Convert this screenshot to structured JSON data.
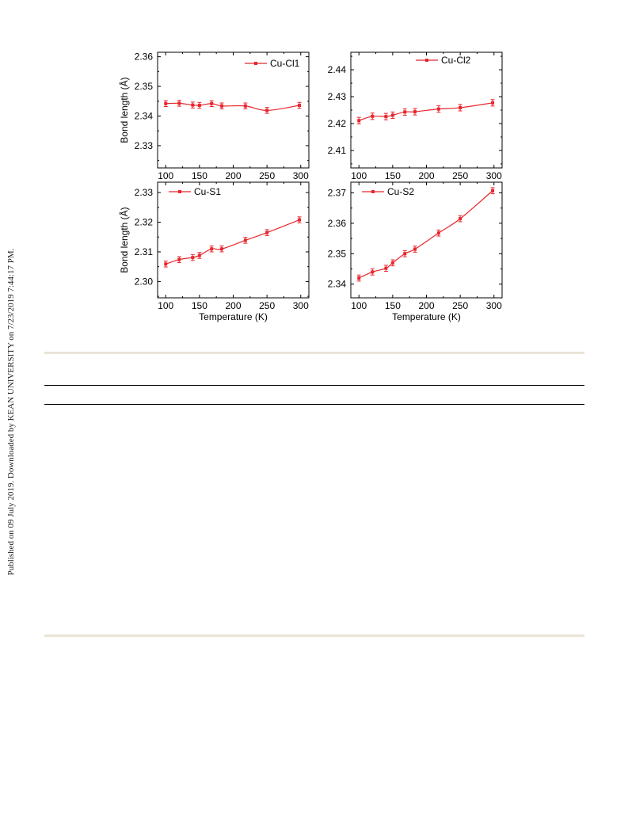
{
  "side_note": "Published on 09 July 2019. Downloaded by KEAN UNIVERSITY on 7/23/2019 7:44:17 PM.",
  "colors": {
    "series": "#e8262d",
    "axis": "#000000",
    "rule_beige": "#e9e4d6"
  },
  "chart_data": [
    {
      "type": "line",
      "title": "",
      "xlabel": "",
      "ylabel": "Bond length (Å)",
      "xlim": [
        88,
        312
      ],
      "ylim": [
        2.3225,
        2.3615
      ],
      "x_ticks": [
        "100",
        "150",
        "200",
        "250",
        "300"
      ],
      "y_ticks": [
        "2.33",
        "2.34",
        "2.35",
        "2.36"
      ],
      "legend_position": "top-right",
      "series": [
        {
          "name": "Cu-Cl1",
          "x": [
            100,
            120,
            140,
            150,
            168,
            183,
            218,
            250,
            298
          ],
          "y": [
            2.3442,
            2.3443,
            2.3437,
            2.3436,
            2.3442,
            2.3434,
            2.3434,
            2.3419,
            2.3436
          ],
          "err": [
            0.001,
            0.001,
            0.001,
            0.001,
            0.001,
            0.001,
            0.001,
            0.001,
            0.001
          ]
        }
      ]
    },
    {
      "type": "line",
      "title": "",
      "xlabel": "",
      "ylabel": "",
      "xlim": [
        88,
        312
      ],
      "ylim": [
        2.4035,
        2.4465
      ],
      "x_ticks": [
        "100",
        "150",
        "200",
        "250",
        "300"
      ],
      "y_ticks": [
        "2.41",
        "2.42",
        "2.43",
        "2.44"
      ],
      "legend_position": "top-center",
      "series": [
        {
          "name": "Cu-Cl2",
          "x": [
            100,
            120,
            140,
            150,
            168,
            183,
            218,
            250,
            298
          ],
          "y": [
            2.4211,
            2.4227,
            2.4226,
            2.4231,
            2.4243,
            2.4244,
            2.4254,
            2.4259,
            2.4277
          ],
          "err": [
            0.0012,
            0.0012,
            0.0012,
            0.0012,
            0.0012,
            0.0012,
            0.0012,
            0.0012,
            0.0012
          ]
        }
      ]
    },
    {
      "type": "line",
      "title": "",
      "xlabel": "Temperature (K)",
      "ylabel": "Bond length (Å)",
      "xlim": [
        88,
        312
      ],
      "ylim": [
        2.2945,
        2.3335
      ],
      "x_ticks": [
        "100",
        "150",
        "200",
        "250",
        "300"
      ],
      "y_ticks": [
        "2.30",
        "2.31",
        "2.32",
        "2.33"
      ],
      "legend_position": "top-left",
      "series": [
        {
          "name": "Cu-S1",
          "x": [
            100,
            120,
            140,
            150,
            168,
            183,
            218,
            250,
            298
          ],
          "y": [
            2.3059,
            2.3074,
            2.3081,
            2.3088,
            2.311,
            2.311,
            2.3139,
            2.3165,
            2.3208
          ],
          "err": [
            0.001,
            0.001,
            0.001,
            0.001,
            0.001,
            0.001,
            0.001,
            0.001,
            0.001
          ]
        }
      ]
    },
    {
      "type": "line",
      "title": "",
      "xlabel": "Temperature (K)",
      "ylabel": "",
      "xlim": [
        88,
        312
      ],
      "ylim": [
        2.3355,
        2.3735
      ],
      "x_ticks": [
        "100",
        "150",
        "200",
        "250",
        "300"
      ],
      "y_ticks": [
        "2.34",
        "2.35",
        "2.36",
        "2.37"
      ],
      "legend_position": "top-left",
      "series": [
        {
          "name": "Cu-S2",
          "x": [
            100,
            120,
            140,
            150,
            168,
            183,
            218,
            250,
            298
          ],
          "y": [
            2.342,
            2.344,
            2.3452,
            2.347,
            2.35,
            2.3515,
            2.3568,
            2.3615,
            2.3707
          ],
          "err": [
            0.001,
            0.001,
            0.001,
            0.001,
            0.001,
            0.001,
            0.001,
            0.001,
            0.001
          ]
        }
      ]
    }
  ]
}
